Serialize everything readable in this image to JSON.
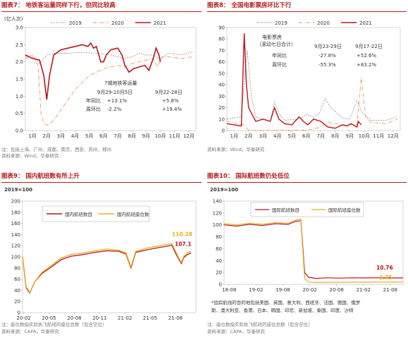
{
  "colors": {
    "c2019": "#9a9a9a",
    "c2020": "#e8935a",
    "c2021": "#b8161b",
    "domestic": "#b8161b",
    "seat": "#e3b21f",
    "title": "#b41c1c"
  },
  "p7": {
    "title": "图表7： 地铁客运量同样下行，但同比较高",
    "unit": "(亿人次)",
    "legend": [
      "2019",
      "2020",
      "2021"
    ],
    "note1": "注：包括上海、广州、成都、南京、西安、苏州、郑州",
    "note2": "资料来源：Wind，华泰研究",
    "annot": {
      "title": "7城地铁客运量",
      "p1": "9月29-10月5日",
      "p2": "9月22-28日",
      "r1": "年同比",
      "r2": "周环比",
      "v11": "+13.1%",
      "v12": "+5.8%",
      "v21": "-2.2%",
      "v22": "+19.4%"
    }
  },
  "p8": {
    "title": "图表8： 全国电影票房环比下行",
    "legend": [
      "2019",
      "2020",
      "2021"
    ],
    "note1": "资料来源：Wind，华泰研究",
    "annot": {
      "t1": "电影票房",
      "t2": "（滚动七日合计）",
      "p1": "9月23-29日",
      "p2": "9月17-22日",
      "r1": "年同比",
      "r2": "周环比",
      "v11": "-27.8%",
      "v12": "+52.6%",
      "v21": "-55.3%",
      "v22": "+83.2%"
    }
  },
  "p9": {
    "title": "图表9： 国内航班数有所上升",
    "unit": "2019=100",
    "legend": [
      "国内航班数目",
      "国内航班座位数"
    ],
    "label_seat": "110.28",
    "label_dom": "107.1",
    "note1": "注：座位数指实际执飞航班的座位总数（包含空位）",
    "note2": "资料来源：CAPA，华泰研究"
  },
  "p10": {
    "title": "图表10： 国际航班数仍处低位",
    "unit": "2019=100",
    "legend": [
      "国际航班数目",
      "国际航班座位数"
    ],
    "label_int": "10.76",
    "label_seat": "3.75",
    "footnote1": "*追踪航线的目的地包括美国、英国、意大利、西班牙、法国、德国、俄罗",
    "footnote2": "斯、澳大利亚、香港、日本、韩国、印尼、新加坡、泰国、印度、沙特",
    "note1": "注：座位数指实际执飞航班的座位总数（包含空位）",
    "note2": "资料来源：CAPA，华泰研究"
  },
  "chart_data": [
    {
      "type": "line",
      "title": "地铁客运量同样下行，但同比较高",
      "ylabel": "(亿人次)",
      "ylim": [
        0,
        3.0
      ],
      "yticks": [
        0.0,
        0.5,
        1.0,
        1.5,
        2.0,
        2.5,
        3.0
      ],
      "xticks": [
        "1月",
        "2月",
        "3月",
        "4月",
        "5月",
        "6月",
        "7月",
        "8月",
        "9月",
        "10月",
        "11月",
        "12月"
      ],
      "series": [
        {
          "name": "2019",
          "values": [
            [
              0,
              2.15
            ],
            [
              0.5,
              2.2
            ],
            [
              1,
              1.95
            ],
            [
              1.5,
              2.2
            ],
            [
              2,
              2.25
            ],
            [
              3,
              2.25
            ],
            [
              4,
              2.28
            ],
            [
              5,
              2.25
            ],
            [
              6,
              2.2
            ],
            [
              7,
              2.1
            ],
            [
              7.5,
              2.15
            ],
            [
              8,
              2.25
            ],
            [
              8.5,
              2.2
            ],
            [
              9,
              2.2
            ],
            [
              9.5,
              2.05
            ],
            [
              10,
              2.25
            ],
            [
              11,
              2.2
            ],
            [
              11.8,
              2.3
            ]
          ]
        },
        {
          "name": "2020",
          "values": [
            [
              0,
              2.1
            ],
            [
              0.5,
              2.15
            ],
            [
              0.9,
              1.9
            ],
            [
              1.1,
              0.5
            ],
            [
              1.3,
              0.2
            ],
            [
              1.6,
              0.15
            ],
            [
              2,
              0.3
            ],
            [
              2.5,
              0.6
            ],
            [
              3,
              0.9
            ],
            [
              3.5,
              1.2
            ],
            [
              4,
              1.4
            ],
            [
              4.5,
              1.6
            ],
            [
              5,
              1.7
            ],
            [
              5.5,
              1.8
            ],
            [
              6,
              1.85
            ],
            [
              6.5,
              1.9
            ],
            [
              7,
              1.85
            ],
            [
              7.5,
              1.95
            ],
            [
              8,
              2.0
            ],
            [
              8.5,
              2.05
            ],
            [
              9,
              2.1
            ],
            [
              9.3,
              1.85
            ],
            [
              9.6,
              2.15
            ],
            [
              10,
              2.15
            ],
            [
              11,
              2.1
            ],
            [
              11.8,
              2.15
            ]
          ]
        },
        {
          "name": "2021",
          "values": [
            [
              0,
              2.2
            ],
            [
              0.5,
              2.1
            ],
            [
              1,
              2.05
            ],
            [
              1.3,
              1.6
            ],
            [
              1.5,
              0.9
            ],
            [
              1.7,
              1.6
            ],
            [
              2,
              2.2
            ],
            [
              2.5,
              2.35
            ],
            [
              3,
              2.4
            ],
            [
              3.5,
              2.45
            ],
            [
              4,
              2.5
            ],
            [
              4.4,
              2.45
            ],
            [
              4.6,
              2.55
            ],
            [
              4.8,
              2.4
            ],
            [
              5,
              2.45
            ],
            [
              5.3,
              2.0
            ],
            [
              5.5,
              2.0
            ],
            [
              5.7,
              2.2
            ],
            [
              6,
              2.35
            ],
            [
              6.5,
              2.4
            ],
            [
              6.8,
              2.2
            ],
            [
              7,
              1.9
            ],
            [
              7.3,
              1.7
            ],
            [
              7.6,
              1.8
            ],
            [
              8,
              1.85
            ],
            [
              8.4,
              1.9
            ],
            [
              8.7,
              1.75
            ],
            [
              9,
              2.1
            ],
            [
              9.2,
              2.4
            ],
            [
              9.4,
              2.2
            ],
            [
              9.5,
              2.0
            ]
          ]
        }
      ]
    },
    {
      "type": "line",
      "title": "全国电影票房环比下行",
      "ylim": [
        0,
        90
      ],
      "yticks": [
        0,
        10,
        20,
        30,
        40,
        50,
        60,
        70,
        80,
        90
      ],
      "xticks": [
        "1月",
        "2月",
        "3月",
        "4月",
        "5月",
        "6月",
        "7月",
        "8月",
        "9月",
        "10月",
        "11月",
        "12月"
      ],
      "series": [
        {
          "name": "2019",
          "values": [
            [
              0,
              10
            ],
            [
              1,
              12
            ],
            [
              1.4,
              70
            ],
            [
              1.7,
              30
            ],
            [
              2,
              12
            ],
            [
              2.5,
              10
            ],
            [
              3,
              8
            ],
            [
              3.3,
              25
            ],
            [
              3.6,
              15
            ],
            [
              4,
              9
            ],
            [
              5,
              10
            ],
            [
              5.5,
              14
            ],
            [
              6,
              12
            ],
            [
              6.4,
              15
            ],
            [
              6.8,
              28
            ],
            [
              7.2,
              20
            ],
            [
              8,
              11
            ],
            [
              8.5,
              10
            ],
            [
              9,
              26
            ],
            [
              9.4,
              15
            ],
            [
              10,
              9
            ],
            [
              11,
              9
            ],
            [
              11.8,
              12
            ]
          ]
        },
        {
          "name": "2020",
          "values": [
            [
              0,
              8
            ],
            [
              1.2,
              5
            ],
            [
              1.5,
              0.2
            ],
            [
              5.5,
              0.3
            ],
            [
              6.2,
              2
            ],
            [
              6.6,
              4
            ],
            [
              7,
              7
            ],
            [
              7.5,
              6
            ],
            [
              8,
              5
            ],
            [
              9,
              5
            ],
            [
              9.3,
              46
            ],
            [
              9.6,
              12
            ],
            [
              10,
              7
            ],
            [
              11,
              6
            ],
            [
              11.8,
              10
            ]
          ]
        },
        {
          "name": "2021",
          "values": [
            [
              0,
              6
            ],
            [
              0.5,
              5
            ],
            [
              1,
              4
            ],
            [
              1.2,
              85
            ],
            [
              1.35,
              40
            ],
            [
              1.5,
              20
            ],
            [
              1.7,
              15
            ],
            [
              2,
              8
            ],
            [
              2.5,
              10
            ],
            [
              3,
              8
            ],
            [
              3.3,
              20
            ],
            [
              3.6,
              10
            ],
            [
              4,
              6
            ],
            [
              4.5,
              5
            ],
            [
              5,
              12
            ],
            [
              5.3,
              8
            ],
            [
              5.6,
              5
            ],
            [
              6,
              10
            ],
            [
              6.5,
              8
            ],
            [
              6.8,
              5
            ],
            [
              7,
              3
            ],
            [
              7.5,
              2
            ],
            [
              8,
              5
            ],
            [
              8.3,
              4
            ],
            [
              8.6,
              6
            ],
            [
              9,
              3
            ],
            [
              9.1,
              8
            ],
            [
              9.3,
              5
            ]
          ]
        }
      ]
    },
    {
      "type": "line",
      "title": "国内航班数有所上升",
      "ylabel": "2019=100",
      "ylim": [
        0,
        200
      ],
      "yticks": [
        0,
        20,
        40,
        60,
        80,
        100,
        120,
        140,
        160,
        180,
        200
      ],
      "xticks": [
        "20-02",
        "20-05",
        "20-08",
        "20-11",
        "21-02",
        "21-05",
        "21-08"
      ],
      "series": [
        {
          "name": "国内航班数目",
          "values": [
            [
              0,
              100
            ],
            [
              0.15,
              45
            ],
            [
              0.3,
              35
            ],
            [
              0.5,
              55
            ],
            [
              0.8,
              70
            ],
            [
              1.2,
              82
            ],
            [
              1.6,
              95
            ],
            [
              2,
              101
            ],
            [
              2.5,
              104
            ],
            [
              3,
              108
            ],
            [
              3.5,
              111
            ],
            [
              4,
              110
            ],
            [
              4.3,
              105
            ],
            [
              4.5,
              80
            ],
            [
              4.7,
              108
            ],
            [
              5.2,
              113
            ],
            [
              5.7,
              117
            ],
            [
              6,
              119
            ],
            [
              6.2,
              121
            ],
            [
              6.35,
              107.1
            ],
            [
              6.5,
              95
            ],
            [
              6.6,
              88
            ],
            [
              6.7,
              99
            ],
            [
              6.85,
              104
            ],
            [
              7,
              107.1
            ]
          ]
        },
        {
          "name": "国内航班座位数",
          "values": [
            [
              0,
              100
            ],
            [
              0.15,
              43
            ],
            [
              0.3,
              34
            ],
            [
              0.5,
              55
            ],
            [
              0.8,
              72
            ],
            [
              1.2,
              85
            ],
            [
              1.6,
              98
            ],
            [
              2,
              104
            ],
            [
              2.5,
              107
            ],
            [
              3,
              111
            ],
            [
              3.5,
              114
            ],
            [
              4,
              112
            ],
            [
              4.3,
              107
            ],
            [
              4.5,
              82
            ],
            [
              4.7,
              110
            ],
            [
              5.2,
              116
            ],
            [
              5.7,
              120
            ],
            [
              6,
              122
            ],
            [
              6.2,
              124
            ],
            [
              6.35,
              110.28
            ],
            [
              6.5,
              97
            ],
            [
              6.6,
              90
            ],
            [
              6.7,
              101
            ],
            [
              6.85,
              107
            ],
            [
              7,
              110.28
            ]
          ]
        }
      ]
    },
    {
      "type": "line",
      "title": "国际航班数仍处低位",
      "ylabel": "2019=100",
      "ylim": [
        0,
        140
      ],
      "yticks": [
        0,
        20,
        40,
        60,
        80,
        100,
        120,
        140
      ],
      "xticks": [
        "18-08",
        "19-02",
        "19-08",
        "20-02",
        "20-08",
        "21-02",
        "21-08"
      ],
      "series": [
        {
          "name": "国际航班数目",
          "values": [
            [
              0,
              100
            ],
            [
              0.5,
              98
            ],
            [
              1,
              101
            ],
            [
              1.5,
              99
            ],
            [
              2,
              102
            ],
            [
              2.5,
              101
            ],
            [
              2.8,
              106
            ],
            [
              3,
              107
            ],
            [
              3.05,
              80
            ],
            [
              3.15,
              20
            ],
            [
              3.3,
              12
            ],
            [
              3.6,
              10
            ],
            [
              4,
              11
            ],
            [
              4.5,
              10.5
            ],
            [
              5,
              11
            ],
            [
              5.5,
              10.8
            ],
            [
              6,
              11
            ],
            [
              6.5,
              10.8
            ],
            [
              7,
              10.76
            ]
          ]
        },
        {
          "name": "国际航班座位数",
          "values": [
            [
              0,
              102
            ],
            [
              0.5,
              100
            ],
            [
              1,
              103
            ],
            [
              1.5,
              101
            ],
            [
              2,
              104
            ],
            [
              2.5,
              103
            ],
            [
              2.8,
              108
            ],
            [
              3,
              110
            ],
            [
              3.05,
              75
            ],
            [
              3.15,
              10
            ],
            [
              3.3,
              4
            ],
            [
              3.6,
              3
            ],
            [
              4,
              3.5
            ],
            [
              4.5,
              3.4
            ],
            [
              5,
              3.8
            ],
            [
              5.5,
              3.6
            ],
            [
              6,
              3.9
            ],
            [
              6.5,
              3.7
            ],
            [
              7,
              3.75
            ]
          ]
        }
      ]
    }
  ]
}
